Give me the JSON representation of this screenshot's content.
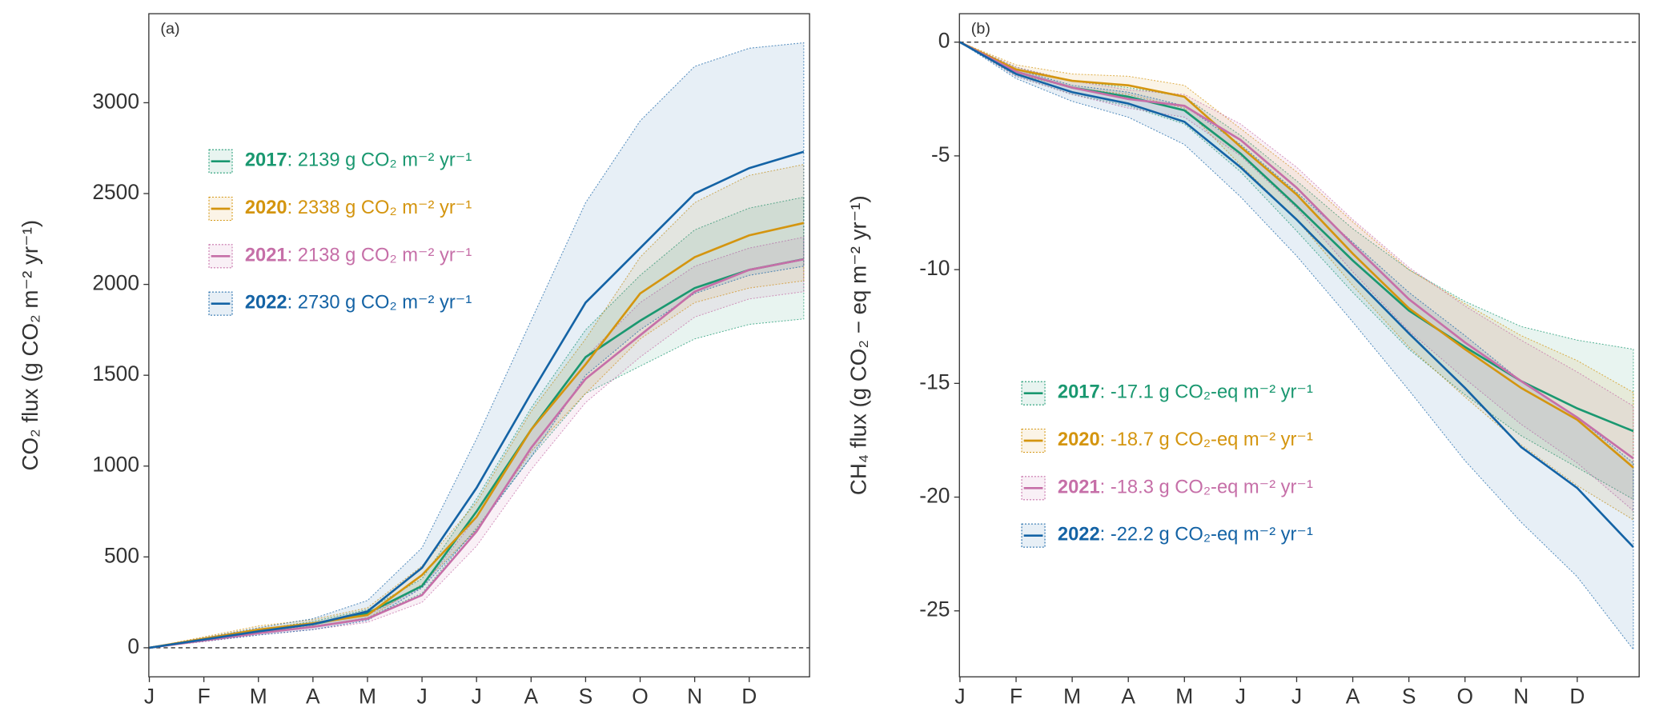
{
  "chart_data": [
    {
      "type": "line",
      "panel": "(a)",
      "ylabel": "CO₂ flux (g CO₂ m⁻² yr⁻¹)",
      "categories": [
        "J",
        "F",
        "M",
        "A",
        "M",
        "J",
        "J",
        "A",
        "S",
        "O",
        "N",
        "D",
        null
      ],
      "ylim": [
        -160,
        3490
      ],
      "yticks": [
        0,
        500,
        1000,
        1500,
        2000,
        2500,
        3000
      ],
      "hline": 0,
      "series": [
        {
          "name": "2017",
          "legend_text": ": 2139 g CO₂ m⁻² yr⁻¹",
          "color": "#1a9870",
          "values": [
            0,
            45,
            90,
            130,
            190,
            340,
            750,
            1200,
            1600,
            1800,
            1980,
            2080,
            2139
          ],
          "lower": [
            0,
            40,
            80,
            115,
            165,
            300,
            660,
            1050,
            1400,
            1550,
            1700,
            1780,
            1810
          ],
          "upper": [
            0,
            52,
            100,
            145,
            210,
            380,
            820,
            1320,
            1750,
            2050,
            2300,
            2420,
            2480
          ]
        },
        {
          "name": "2020",
          "legend_text": ": 2338 g CO₂ m⁻² yr⁻¹",
          "color": "#d4950f",
          "values": [
            0,
            50,
            100,
            135,
            180,
            400,
            720,
            1200,
            1560,
            1950,
            2150,
            2270,
            2338
          ],
          "lower": [
            0,
            42,
            85,
            120,
            160,
            350,
            650,
            1080,
            1400,
            1700,
            1900,
            1980,
            2020
          ],
          "upper": [
            0,
            60,
            120,
            155,
            220,
            450,
            800,
            1300,
            1700,
            2150,
            2450,
            2600,
            2660
          ]
        },
        {
          "name": "2021",
          "legend_text": ": 2138 g CO₂ m⁻² yr⁻¹",
          "color": "#c66fa8",
          "values": [
            0,
            40,
            80,
            115,
            160,
            290,
            640,
            1100,
            1480,
            1720,
            1960,
            2080,
            2138
          ],
          "lower": [
            0,
            34,
            70,
            100,
            140,
            250,
            560,
            980,
            1350,
            1600,
            1820,
            1920,
            1960
          ],
          "upper": [
            0,
            46,
            90,
            130,
            180,
            330,
            720,
            1200,
            1600,
            1900,
            2100,
            2200,
            2260
          ]
        },
        {
          "name": "2022",
          "legend_text": ": 2730 g CO₂ m⁻² yr⁻¹",
          "color": "#1463a5",
          "values": [
            0,
            45,
            90,
            130,
            200,
            440,
            880,
            1400,
            1900,
            2200,
            2500,
            2640,
            2730
          ],
          "lower": [
            0,
            35,
            70,
            100,
            150,
            330,
            650,
            1050,
            1500,
            1750,
            1950,
            2050,
            2100
          ],
          "upper": [
            0,
            55,
            110,
            160,
            260,
            550,
            1150,
            1800,
            2450,
            2900,
            3200,
            3300,
            3330
          ]
        }
      ]
    },
    {
      "type": "line",
      "panel": "(b)",
      "ylabel": "CH₄ flux (g CO₂ − eq m⁻² yr⁻¹)",
      "categories": [
        "J",
        "F",
        "M",
        "A",
        "M",
        "J",
        "J",
        "A",
        "S",
        "O",
        "N",
        "D",
        null
      ],
      "ylim": [
        -27.9,
        1.25
      ],
      "yticks": [
        0,
        -5,
        -10,
        -15,
        -20,
        -25
      ],
      "hline": 0,
      "series": [
        {
          "name": "2017",
          "legend_text": ": -17.1 g CO₂-eq m⁻² yr⁻¹",
          "color": "#1a9870",
          "values": [
            0,
            -1.3,
            -2.0,
            -2.4,
            -3.0,
            -4.9,
            -7.2,
            -9.6,
            -11.8,
            -13.4,
            -14.9,
            -16.1,
            -17.1
          ],
          "lower": [
            0,
            -1.5,
            -2.3,
            -2.8,
            -3.6,
            -5.7,
            -8.3,
            -11,
            -13.5,
            -15.5,
            -17.3,
            -18.7,
            -20.1
          ],
          "upper": [
            0,
            -1.1,
            -1.7,
            -2,
            -2.4,
            -4.1,
            -6.1,
            -8.2,
            -10,
            -11.4,
            -12.5,
            -13.1,
            -13.5
          ]
        },
        {
          "name": "2020",
          "legend_text": ": -18.7 g CO₂-eq m⁻² yr⁻¹",
          "color": "#d4950f",
          "values": [
            0,
            -1.2,
            -1.7,
            -1.9,
            -2.4,
            -4.6,
            -6.7,
            -9.3,
            -11.7,
            -13.5,
            -15.2,
            -16.6,
            -18.7
          ],
          "lower": [
            0,
            -1.4,
            -2,
            -2.3,
            -2.9,
            -5.4,
            -7.8,
            -10.7,
            -13.4,
            -15.6,
            -17.7,
            -19.5,
            -21
          ],
          "upper": [
            0,
            -1,
            -1.4,
            -1.5,
            -1.9,
            -3.8,
            -5.7,
            -7.9,
            -10,
            -11.5,
            -12.9,
            -14,
            -15.4
          ]
        },
        {
          "name": "2021",
          "legend_text": ": -18.3 g CO₂-eq m⁻² yr⁻¹",
          "color": "#c66fa8",
          "values": [
            0,
            -1.3,
            -2.0,
            -2.5,
            -2.8,
            -4.3,
            -6.4,
            -8.9,
            -11.3,
            -13.2,
            -14.9,
            -16.5,
            -18.3
          ],
          "lower": [
            0,
            -1.5,
            -2.3,
            -2.9,
            -3.3,
            -5,
            -7.3,
            -10.1,
            -12.7,
            -14.8,
            -16.8,
            -18.5,
            -20.6
          ],
          "upper": [
            0,
            -1.1,
            -1.7,
            -2.1,
            -2.3,
            -3.6,
            -5.5,
            -7.8,
            -9.9,
            -11.6,
            -13.1,
            -14.5,
            -16
          ]
        },
        {
          "name": "2022",
          "legend_text": ": -22.2 g CO₂-eq m⁻² yr⁻¹",
          "color": "#1463a5",
          "values": [
            0,
            -1.4,
            -2.2,
            -2.7,
            -3.5,
            -5.5,
            -7.8,
            -10.3,
            -12.8,
            -15.2,
            -17.8,
            -19.6,
            -22.2
          ],
          "lower": [
            0,
            -1.6,
            -2.6,
            -3.3,
            -4.5,
            -6.8,
            -9.4,
            -12.3,
            -15.3,
            -18.4,
            -21.1,
            -23.5,
            -26.7
          ],
          "upper": [
            0,
            -1.2,
            -1.9,
            -2.2,
            -2.8,
            -4.5,
            -6.6,
            -8.8,
            -11,
            -12.9,
            -14.9,
            -16.5,
            -18.5
          ]
        }
      ]
    }
  ]
}
